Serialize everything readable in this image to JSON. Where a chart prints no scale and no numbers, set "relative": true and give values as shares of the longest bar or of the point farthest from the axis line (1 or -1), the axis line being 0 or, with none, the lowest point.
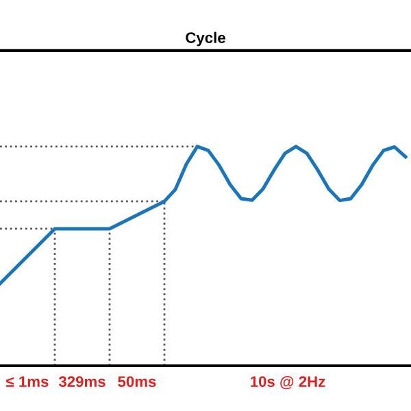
{
  "chart_data": {
    "type": "line",
    "title": "Cycle",
    "relative": true,
    "categories": [
      null,
      null,
      null,
      null,
      null,
      null,
      null,
      null,
      null,
      null,
      null,
      null,
      null,
      null,
      null,
      null,
      null,
      null,
      null,
      null,
      null,
      null,
      null,
      null,
      null,
      null,
      null,
      null,
      null,
      null,
      null,
      null,
      null,
      null,
      null,
      null,
      null,
      null
    ],
    "series": [
      {
        "color": "#1a75bc",
        "values": [
          0.375,
          0.425,
          0.475,
          0.525,
          0.575,
          0.625,
          0.625,
          0.625,
          0.625,
          0.625,
          0.625,
          0.65,
          0.675,
          0.7,
          0.725,
          0.75,
          0.804,
          0.919,
          1.0,
          0.982,
          0.914,
          0.826,
          0.762,
          0.755,
          0.807,
          0.892,
          0.969,
          1.0,
          0.969,
          0.892,
          0.806,
          0.754,
          0.762,
          0.826,
          0.914,
          0.982,
          0.998,
          0.953
        ]
      }
    ],
    "ref_lines": [
      {
        "axis": "y",
        "value": 1.0,
        "color": "#555555",
        "line_style": "dotted"
      },
      {
        "axis": "y",
        "value": 0.75,
        "color": "#555555",
        "line_style": "dotted"
      },
      {
        "axis": "y",
        "value": 0.625,
        "color": "#555555",
        "line_style": "dotted"
      }
    ],
    "annotations": [
      "≤ 1ms",
      "329ms",
      "50ms",
      "10s @ 2Hz"
    ],
    "tick_labels": false,
    "legend": false,
    "line_style": "solid",
    "marker": "none"
  }
}
